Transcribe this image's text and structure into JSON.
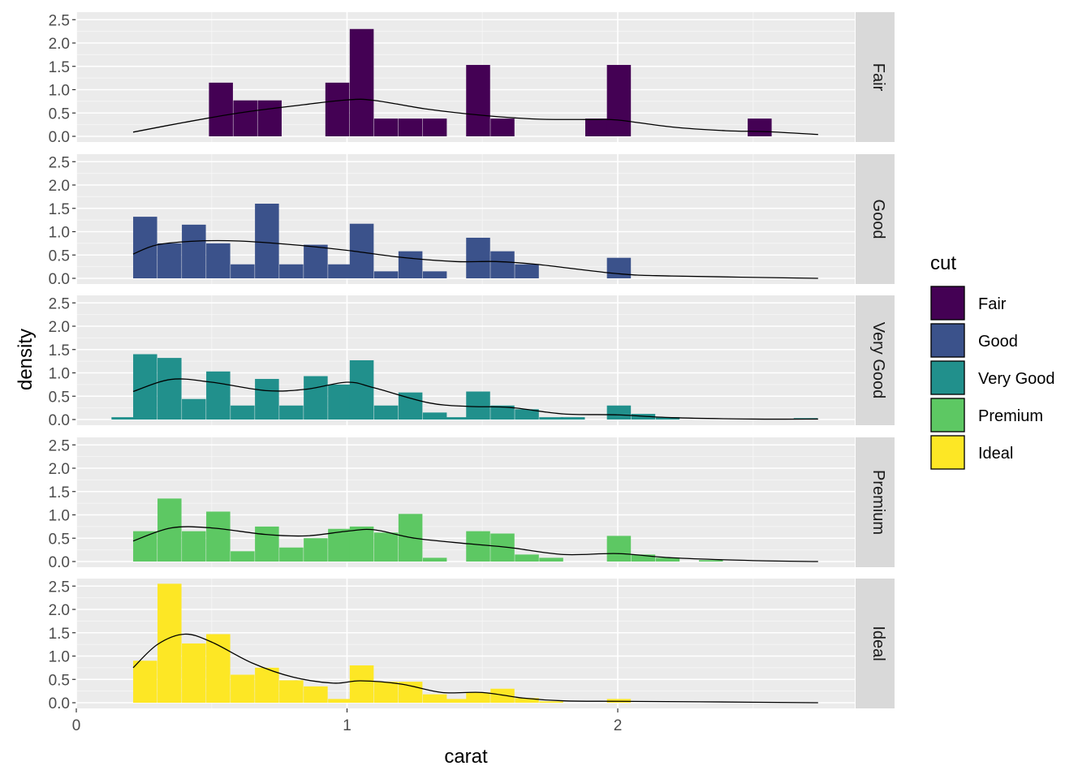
{
  "chart_data": {
    "type": "bar",
    "subtype": "faceted histogram with density curve",
    "xlabel": "carat",
    "ylabel": "density",
    "xlim": [
      0,
      2.85
    ],
    "ylim": [
      0,
      2.6
    ],
    "x_ticks": [
      0,
      1,
      2
    ],
    "x_tick_labels": [
      "0",
      "1",
      "2"
    ],
    "y_ticks": [
      0,
      0.5,
      1,
      1.5,
      2,
      2.5
    ],
    "y_tick_labels": [
      "0.0",
      "0.5",
      "1.0",
      "1.5",
      "2.0",
      "2.5"
    ],
    "bin_width": 0.087,
    "grid": true,
    "legend": {
      "title": "cut",
      "position": "right",
      "entries": [
        "Fair",
        "Good",
        "Very Good",
        "Premium",
        "Ideal"
      ]
    },
    "series": [
      {
        "name": "Fair",
        "color": "#440154",
        "bins": [
          [
            0.49,
            1.15
          ],
          [
            0.58,
            0.77
          ],
          [
            0.67,
            0.77
          ],
          [
            0.92,
            1.15
          ],
          [
            1.01,
            2.3
          ],
          [
            1.1,
            0.38
          ],
          [
            1.19,
            0.38
          ],
          [
            1.28,
            0.38
          ],
          [
            1.44,
            1.53
          ],
          [
            1.53,
            0.38
          ],
          [
            1.88,
            0.38
          ],
          [
            1.96,
            1.53
          ],
          [
            2.48,
            0.38
          ]
        ],
        "density": [
          [
            0.21,
            0.09
          ],
          [
            0.4,
            0.3
          ],
          [
            0.6,
            0.5
          ],
          [
            0.8,
            0.65
          ],
          [
            1.0,
            0.78
          ],
          [
            1.1,
            0.77
          ],
          [
            1.3,
            0.58
          ],
          [
            1.5,
            0.45
          ],
          [
            1.7,
            0.37
          ],
          [
            1.9,
            0.36
          ],
          [
            2.0,
            0.35
          ],
          [
            2.2,
            0.2
          ],
          [
            2.4,
            0.12
          ],
          [
            2.55,
            0.1
          ],
          [
            2.74,
            0.04
          ]
        ]
      },
      {
        "name": "Good",
        "color": "#3B528B",
        "bins": [
          [
            0.21,
            1.32
          ],
          [
            0.3,
            0.75
          ],
          [
            0.39,
            1.15
          ],
          [
            0.48,
            0.75
          ],
          [
            0.57,
            0.3
          ],
          [
            0.66,
            1.6
          ],
          [
            0.75,
            0.3
          ],
          [
            0.84,
            0.72
          ],
          [
            0.93,
            0.3
          ],
          [
            1.01,
            1.17
          ],
          [
            1.1,
            0.15
          ],
          [
            1.19,
            0.58
          ],
          [
            1.28,
            0.15
          ],
          [
            1.44,
            0.87
          ],
          [
            1.53,
            0.58
          ],
          [
            1.62,
            0.3
          ],
          [
            1.96,
            0.44
          ]
        ],
        "density": [
          [
            0.21,
            0.52
          ],
          [
            0.3,
            0.72
          ],
          [
            0.45,
            0.8
          ],
          [
            0.6,
            0.8
          ],
          [
            0.8,
            0.72
          ],
          [
            1.0,
            0.6
          ],
          [
            1.2,
            0.45
          ],
          [
            1.4,
            0.36
          ],
          [
            1.55,
            0.36
          ],
          [
            1.7,
            0.3
          ],
          [
            2.0,
            0.1
          ],
          [
            2.2,
            0.05
          ],
          [
            2.74,
            0.0
          ]
        ]
      },
      {
        "name": "Very Good",
        "color": "#21908C",
        "bins": [
          [
            0.13,
            0.05
          ],
          [
            0.21,
            1.4
          ],
          [
            0.3,
            1.32
          ],
          [
            0.39,
            0.44
          ],
          [
            0.48,
            1.03
          ],
          [
            0.57,
            0.3
          ],
          [
            0.66,
            0.87
          ],
          [
            0.75,
            0.3
          ],
          [
            0.84,
            0.93
          ],
          [
            0.93,
            0.75
          ],
          [
            1.01,
            1.27
          ],
          [
            1.1,
            0.3
          ],
          [
            1.19,
            0.58
          ],
          [
            1.28,
            0.15
          ],
          [
            1.36,
            0.05
          ],
          [
            1.44,
            0.6
          ],
          [
            1.53,
            0.3
          ],
          [
            1.62,
            0.22
          ],
          [
            1.71,
            0.05
          ],
          [
            1.79,
            0.05
          ],
          [
            1.96,
            0.3
          ],
          [
            2.05,
            0.12
          ],
          [
            2.14,
            0.05
          ],
          [
            2.65,
            0.03
          ]
        ],
        "density": [
          [
            0.21,
            0.6
          ],
          [
            0.35,
            0.86
          ],
          [
            0.5,
            0.8
          ],
          [
            0.7,
            0.62
          ],
          [
            0.85,
            0.65
          ],
          [
            1.0,
            0.8
          ],
          [
            1.1,
            0.68
          ],
          [
            1.3,
            0.36
          ],
          [
            1.45,
            0.28
          ],
          [
            1.6,
            0.26
          ],
          [
            1.8,
            0.12
          ],
          [
            2.0,
            0.1
          ],
          [
            2.2,
            0.04
          ],
          [
            2.5,
            0.01
          ],
          [
            2.74,
            0.01
          ]
        ]
      },
      {
        "name": "Premium",
        "color": "#5DC863",
        "bins": [
          [
            0.21,
            0.65
          ],
          [
            0.3,
            1.35
          ],
          [
            0.39,
            0.65
          ],
          [
            0.48,
            1.07
          ],
          [
            0.57,
            0.22
          ],
          [
            0.66,
            0.75
          ],
          [
            0.75,
            0.3
          ],
          [
            0.84,
            0.5
          ],
          [
            0.93,
            0.7
          ],
          [
            1.01,
            0.75
          ],
          [
            1.1,
            0.62
          ],
          [
            1.19,
            1.02
          ],
          [
            1.28,
            0.08
          ],
          [
            1.44,
            0.65
          ],
          [
            1.53,
            0.6
          ],
          [
            1.62,
            0.15
          ],
          [
            1.71,
            0.08
          ],
          [
            1.96,
            0.55
          ],
          [
            2.05,
            0.15
          ],
          [
            2.14,
            0.08
          ],
          [
            2.3,
            0.03
          ]
        ],
        "density": [
          [
            0.21,
            0.44
          ],
          [
            0.35,
            0.72
          ],
          [
            0.5,
            0.72
          ],
          [
            0.7,
            0.58
          ],
          [
            0.85,
            0.55
          ],
          [
            1.0,
            0.65
          ],
          [
            1.1,
            0.68
          ],
          [
            1.25,
            0.5
          ],
          [
            1.45,
            0.38
          ],
          [
            1.6,
            0.3
          ],
          [
            1.8,
            0.15
          ],
          [
            2.0,
            0.17
          ],
          [
            2.2,
            0.08
          ],
          [
            2.5,
            0.02
          ],
          [
            2.74,
            0.0
          ]
        ]
      },
      {
        "name": "Ideal",
        "color": "#FDE725",
        "bins": [
          [
            0.21,
            0.9
          ],
          [
            0.3,
            2.55
          ],
          [
            0.39,
            1.27
          ],
          [
            0.48,
            1.47
          ],
          [
            0.57,
            0.6
          ],
          [
            0.66,
            0.75
          ],
          [
            0.75,
            0.48
          ],
          [
            0.84,
            0.35
          ],
          [
            0.93,
            0.08
          ],
          [
            1.01,
            0.8
          ],
          [
            1.1,
            0.45
          ],
          [
            1.19,
            0.45
          ],
          [
            1.28,
            0.18
          ],
          [
            1.36,
            0.08
          ],
          [
            1.44,
            0.22
          ],
          [
            1.53,
            0.3
          ],
          [
            1.62,
            0.1
          ],
          [
            1.71,
            0.03
          ],
          [
            1.96,
            0.08
          ]
        ],
        "density": [
          [
            0.21,
            0.75
          ],
          [
            0.3,
            1.25
          ],
          [
            0.4,
            1.47
          ],
          [
            0.5,
            1.3
          ],
          [
            0.65,
            0.85
          ],
          [
            0.8,
            0.55
          ],
          [
            0.95,
            0.42
          ],
          [
            1.05,
            0.47
          ],
          [
            1.2,
            0.4
          ],
          [
            1.35,
            0.22
          ],
          [
            1.5,
            0.22
          ],
          [
            1.65,
            0.1
          ],
          [
            1.8,
            0.04
          ],
          [
            2.0,
            0.03
          ],
          [
            2.3,
            0.02
          ],
          [
            2.74,
            0.0
          ]
        ]
      }
    ]
  }
}
